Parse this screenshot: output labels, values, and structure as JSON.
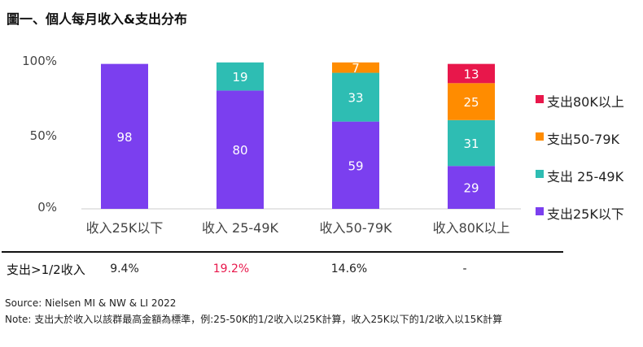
{
  "title": "圖一、個人每月收入&支出分布",
  "chart_data": {
    "type": "bar",
    "stacked": true,
    "categories": [
      "收入25K以下",
      "收入 25-49K",
      "收入50-79K",
      "收入80K以上"
    ],
    "series": [
      {
        "name": "支出25K以下",
        "color": "#7B3FEF",
        "values": [
          98,
          80,
          59,
          29
        ]
      },
      {
        "name": "支出 25-49K",
        "color": "#2EBDB3",
        "values": [
          null,
          19,
          33,
          31
        ]
      },
      {
        "name": "支出50-79K",
        "color": "#FF8C00",
        "values": [
          null,
          null,
          7,
          25
        ]
      },
      {
        "name": "支出80K以上",
        "color": "#E8174B",
        "values": [
          null,
          null,
          null,
          13
        ]
      }
    ],
    "yticks": [
      "0%",
      "50%",
      "100%"
    ],
    "ylim": [
      0,
      100
    ],
    "legend_order": [
      "支出80K以上",
      "支出50-79K",
      "支出 25-49K",
      "支出25K以下"
    ],
    "legend_position": "right"
  },
  "table": {
    "row_label": "支出>1/2收入",
    "values": [
      {
        "text": "9.4%",
        "color": "#222222"
      },
      {
        "text": "19.2%",
        "color": "#E8174B"
      },
      {
        "text": "14.6%",
        "color": "#222222"
      },
      {
        "text": "-",
        "color": "#222222"
      }
    ]
  },
  "source": "Source: Nielsen MI & NW & LI 2022",
  "note": "Note: 支出大於收入以該群最高金額為標準，例:25-50K的1/2收入以25K計算，收入25K以下的1/2收入以15K計算"
}
